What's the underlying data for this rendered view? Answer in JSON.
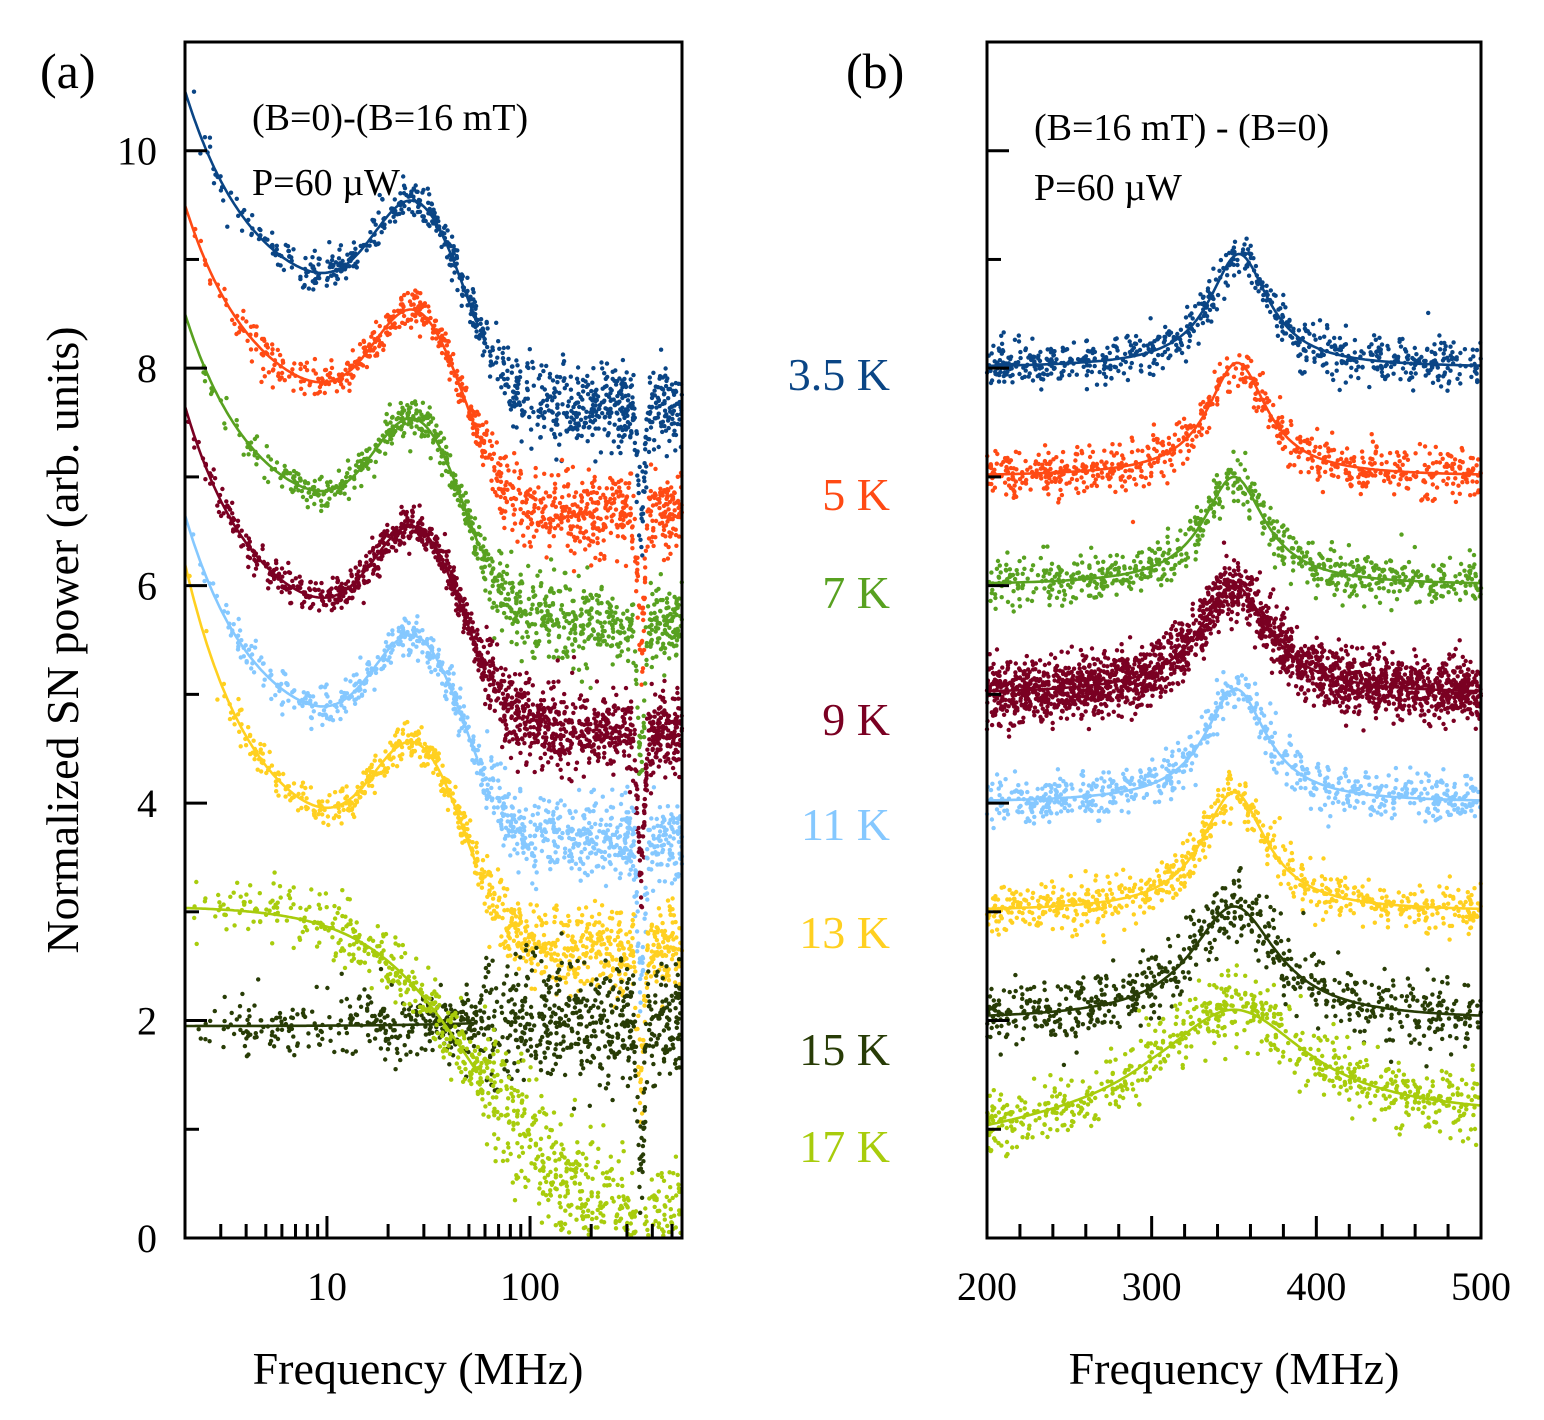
{
  "chart_data": [
    {
      "type": "scatter",
      "panel_label": "(a)",
      "annotation_line1": "(B=0)-(B=16 mT)",
      "annotation_line2": "P=60 µW",
      "xlabel": "Frequency (MHz)",
      "ylabel": "Normalized SN power (arb. units)",
      "xscale": "log",
      "xlim": [
        2,
        560
      ],
      "ylim": [
        0,
        11
      ],
      "x_tick_labels": [
        "10",
        "100"
      ],
      "y_tick_labels": [
        "0",
        "2",
        "4",
        "6",
        "8",
        "10"
      ],
      "series": [
        {
          "name": "3.5 K",
          "color": "#0a4585",
          "offset": 8,
          "start": 2.55,
          "dip_depth": 1.15
        },
        {
          "name": "5 K",
          "color": "#ff4a14",
          "offset": 7,
          "start": 2.5,
          "dip_depth": 1.25
        },
        {
          "name": "7 K",
          "color": "#58a120",
          "offset": 6,
          "start": 2.5,
          "dip_depth": 1.3
        },
        {
          "name": "9 K",
          "color": "#7a0022",
          "offset": 5,
          "start": 2.65,
          "dip_depth": 1.35
        },
        {
          "name": "11 K",
          "color": "#85c8ff",
          "offset": 4,
          "start": 2.65,
          "dip_depth": 1.3
        },
        {
          "name": "13 K",
          "color": "#ffd020",
          "offset": 3,
          "start": 3.2,
          "dip_depth": 1.3
        },
        {
          "name": "15 K",
          "color": "#283c06",
          "offset": 2,
          "start": 1.95,
          "dip_depth": 1.4
        },
        {
          "name": "17 K",
          "color": "#a8cc0c",
          "offset": 0,
          "start": 3.05,
          "dip_depth": 1.0
        }
      ]
    },
    {
      "type": "scatter",
      "panel_label": "(b)",
      "annotation_line1": "(B=16 mT) - (B=0)",
      "annotation_line2": "P=60 µW",
      "xlabel": "Frequency (MHz)",
      "xlim": [
        200,
        500
      ],
      "ylim": [
        0,
        11
      ],
      "x_tick_labels": [
        "200",
        "300",
        "400",
        "500"
      ],
      "series": [
        {
          "name": "3.5 K",
          "color": "#0a4585",
          "baseline": 8,
          "peak_height": 1.05,
          "center": 353,
          "width": 22
        },
        {
          "name": "5 K",
          "color": "#ff4a14",
          "baseline": 7,
          "peak_height": 1.05,
          "center": 352,
          "width": 22
        },
        {
          "name": "7 K",
          "color": "#58a120",
          "baseline": 6,
          "peak_height": 1.0,
          "center": 350,
          "width": 23
        },
        {
          "name": "9 K",
          "color": "#7a0022",
          "baseline": 5,
          "peak_height": 1.0,
          "center": 350,
          "width": 26
        },
        {
          "name": "11 K",
          "color": "#85c8ff",
          "baseline": 4,
          "peak_height": 1.05,
          "center": 351,
          "width": 23
        },
        {
          "name": "13 K",
          "color": "#ffd020",
          "baseline": 3,
          "peak_height": 1.1,
          "center": 350,
          "width": 24
        },
        {
          "name": "15 K",
          "color": "#283c06",
          "baseline": 2,
          "peak_height": 1.05,
          "center": 350,
          "width": 32
        },
        {
          "name": "17 K",
          "color": "#a8cc0c",
          "baseline": 1.1,
          "peak_height": 1.0,
          "center": 350,
          "width": 55
        }
      ]
    }
  ]
}
